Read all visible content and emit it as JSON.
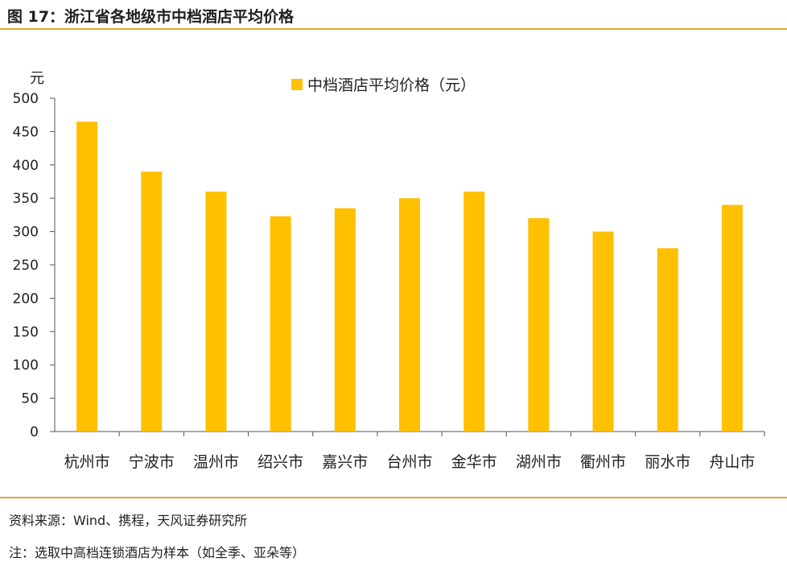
{
  "figure": {
    "title": "图 17：浙江省各地级市中档酒店平均价格",
    "source": "资料来源：Wind、携程，天风证券研究所",
    "note": "注：选取中高档连锁酒店为样本（如全季、亚朵等）"
  },
  "colors": {
    "bar": "#FFC000",
    "rule": "#E6A23C",
    "axis": "#555555"
  },
  "chart_data": {
    "type": "bar",
    "title": "",
    "ylabel": "元",
    "xlabel": "",
    "ylim": [
      0,
      500
    ],
    "yticks": [
      0,
      50,
      100,
      150,
      200,
      250,
      300,
      350,
      400,
      450,
      500
    ],
    "grid": false,
    "legend_position": "top-center",
    "categories": [
      "杭州市",
      "宁波市",
      "温州市",
      "绍兴市",
      "嘉兴市",
      "台州市",
      "金华市",
      "湖州市",
      "衢州市",
      "丽水市",
      "舟山市"
    ],
    "series": [
      {
        "name": "中档酒店平均价格（元）",
        "values": [
          465,
          390,
          360,
          323,
          335,
          350,
          360,
          320,
          300,
          275,
          340
        ]
      }
    ]
  }
}
